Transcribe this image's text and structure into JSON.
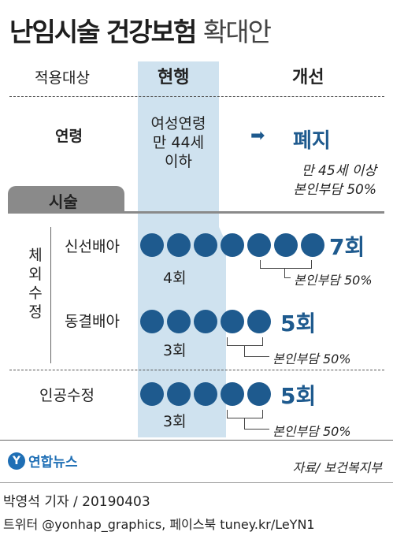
{
  "title": {
    "main": "난임시술 건강보험",
    "sub": "확대안"
  },
  "headers": {
    "target": "적용대상",
    "current": "현행",
    "improved": "개선"
  },
  "age": {
    "label": "연령",
    "current": [
      "여성연령",
      "만 44세",
      "이하"
    ],
    "arrow": "➡",
    "improved": "폐지",
    "note": [
      "만 45세 이상",
      "본인부담 50%"
    ]
  },
  "section_tab": "시술",
  "group_label": [
    "체",
    "외",
    "수",
    "정"
  ],
  "rows": [
    {
      "label": "신선배아",
      "current_count": 4,
      "current_text": "4회",
      "new_count": 7,
      "new_text": "7회",
      "extra_count": 3,
      "note": "본인부담 50%"
    },
    {
      "label": "동결배아",
      "current_count": 3,
      "current_text": "3회",
      "new_count": 5,
      "new_text": "5회",
      "extra_count": 2,
      "note": "본인부담 50%"
    },
    {
      "label": "인공수정",
      "current_count": 3,
      "current_text": "3회",
      "new_count": 5,
      "new_text": "5회",
      "extra_count": 2,
      "note": "본인부담 50%"
    }
  ],
  "source": "자료/ 보건복지부",
  "logo": {
    "text": "연합뉴스",
    "icon": "yonhap-logo-icon"
  },
  "credit": {
    "reporter": "박영석 기자 / 20190403",
    "social": "트위터 @yonhap_graphics, 페이스북 tuney.kr/LeYN1"
  },
  "colors": {
    "accent": "#1e5a8e",
    "band": "#cfe2ef",
    "tab": "#8a8a8a"
  }
}
